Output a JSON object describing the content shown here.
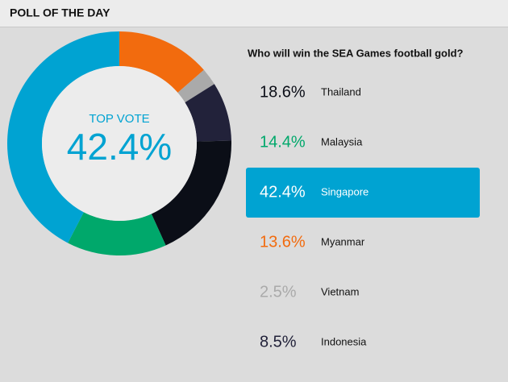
{
  "header": {
    "title": "POLL OF THE DAY"
  },
  "chart_data": {
    "type": "pie",
    "title": "Who will win the SEA Games football gold?",
    "center_label": "TOP VOTE",
    "categories": [
      "Thailand",
      "Malaysia",
      "Singapore",
      "Myanmar",
      "Vietnam",
      "Indonesia"
    ],
    "values": [
      18.6,
      14.4,
      42.4,
      13.6,
      2.5,
      8.5
    ],
    "value_labels": [
      "18.6%",
      "14.4%",
      "42.4%",
      "13.6%",
      "2.5%",
      "8.5%"
    ],
    "colors": [
      "#0b0e17",
      "#00a86b",
      "#00a3d2",
      "#f26b0e",
      "#aaaaaa",
      "#22223a"
    ],
    "slice_order": [
      3,
      4,
      5,
      0,
      1,
      2
    ]
  }
}
